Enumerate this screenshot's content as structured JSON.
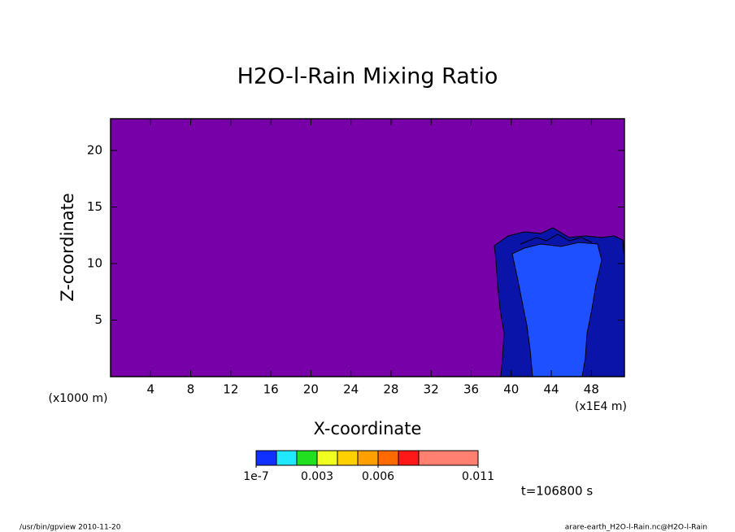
{
  "chart_data": {
    "type": "contour",
    "title": "H2O-l-Rain Mixing Ratio",
    "x_label": "X-coordinate",
    "y_label": "Z-coordinate",
    "x_unit": "(x1E4 m)",
    "y_unit": "(x1000 m)",
    "xlim": [
      0,
      51.3
    ],
    "xticks": [
      4,
      8,
      12,
      16,
      20,
      24,
      28,
      32,
      36,
      40,
      44,
      48
    ],
    "ylim": [
      0,
      22.8
    ],
    "yticks": [
      5,
      10,
      15,
      20
    ],
    "colorbar": {
      "colors": [
        "#1030ff",
        "#20e8ff",
        "#20e020",
        "#f0ff20",
        "#ffd000",
        "#ffa000",
        "#ff6a00",
        "#ff1818",
        "#ff8070"
      ],
      "levels": [
        1e-07,
        0.001,
        0.002,
        0.003,
        0.004,
        0.005,
        0.006,
        0.007,
        0.008,
        0.011
      ],
      "ticks": [
        {
          "value": 1e-07,
          "label": "1e-7"
        },
        0.003,
        0.006,
        0.011
      ]
    },
    "time_label": "t=106800 s",
    "footer_left": "/usr/bin/gpview  2010-11-20",
    "footer_right": "arare-earth_H2O-l-Rain.nc@H2O-l-Rain"
  }
}
